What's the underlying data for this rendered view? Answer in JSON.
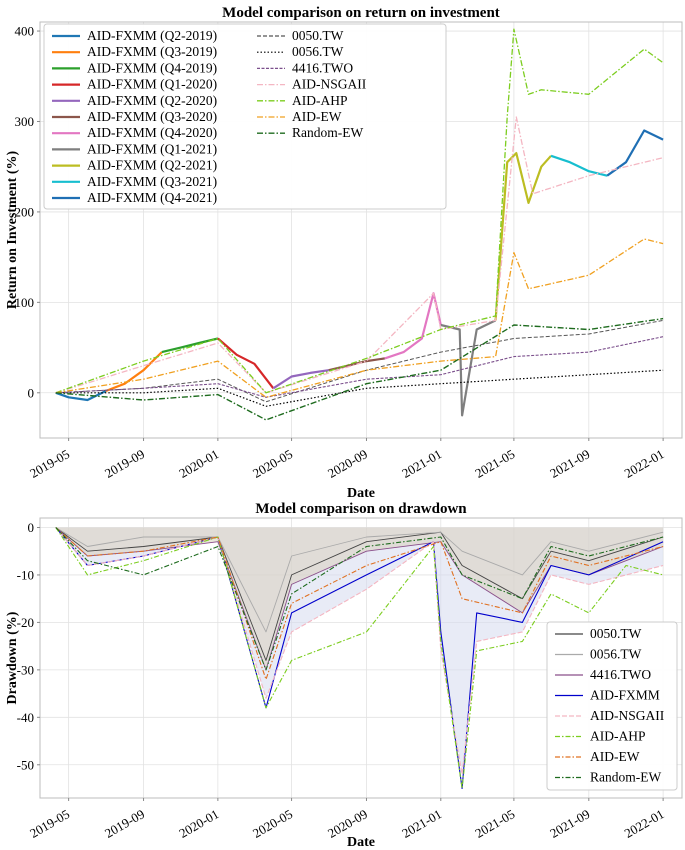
{
  "chart_data": [
    {
      "type": "line",
      "title": "Model comparison on return on investment",
      "xlabel": "Date",
      "ylabel": "Return on Investment (%)",
      "xlim": [
        "2019-03-15",
        "2022-02-01"
      ],
      "ylim": [
        -50,
        410
      ],
      "x_ticks": [
        "2019-05",
        "2019-09",
        "2020-01",
        "2020-05",
        "2020-09",
        "2021-01",
        "2021-05",
        "2021-09",
        "2022-01"
      ],
      "y_ticks": [
        0,
        100,
        200,
        300,
        400
      ],
      "grid": true,
      "legend_placement": "top-left",
      "colors": {
        "fxmm_q2_2019": "#1f77b4",
        "fxmm_q3_2019": "#ff7f0e",
        "fxmm_q4_2019": "#2ca02c",
        "fxmm_q1_2020": "#d62728",
        "fxmm_q2_2020": "#9467bd",
        "fxmm_q3_2020": "#8c564b",
        "fxmm_q4_2020": "#e377c2",
        "fxmm_q1_2021": "#7f7f7f",
        "fxmm_q2_2021": "#bcbd22",
        "fxmm_q3_2021": "#17becf",
        "fxmm_q4_2021": "#1f6fb4",
        "tw0050": "#555555",
        "tw0056": "#000000",
        "two4416": "#7b4f8c",
        "nsgaii": "#f4b6c2",
        "ahp": "#7ccd1f",
        "ew": "#f0a020",
        "random": "#1e6b1e"
      },
      "legend": [
        "AID-FXMM (Q2-2019)",
        "AID-FXMM (Q3-2019)",
        "AID-FXMM (Q4-2019)",
        "AID-FXMM (Q1-2020)",
        "AID-FXMM (Q2-2020)",
        "AID-FXMM (Q3-2020)",
        "AID-FXMM (Q4-2020)",
        "AID-FXMM (Q1-2021)",
        "AID-FXMM (Q2-2021)",
        "AID-FXMM (Q3-2021)",
        "AID-FXMM (Q4-2021)",
        "0050.TW",
        "0056.TW",
        "4416.TWO",
        "AID-NSGAII",
        "AID-AHP",
        "AID-EW",
        "Random-EW"
      ],
      "series": [
        {
          "name": "AID-FXMM (Q2-2019)",
          "x": [
            "2019-04-10",
            "2019-05-01",
            "2019-06-01",
            "2019-07-01"
          ],
          "values": [
            0,
            -5,
            -8,
            2
          ]
        },
        {
          "name": "AID-FXMM (Q3-2019)",
          "x": [
            "2019-07-01",
            "2019-08-01",
            "2019-09-01",
            "2019-10-01"
          ],
          "values": [
            2,
            10,
            25,
            45
          ]
        },
        {
          "name": "AID-FXMM (Q4-2019)",
          "x": [
            "2019-10-01",
            "2019-11-01",
            "2019-12-01",
            "2020-01-01"
          ],
          "values": [
            45,
            50,
            55,
            60
          ]
        },
        {
          "name": "AID-FXMM (Q1-2020)",
          "x": [
            "2020-01-01",
            "2020-02-01",
            "2020-03-01",
            "2020-04-01"
          ],
          "values": [
            60,
            42,
            32,
            5
          ]
        },
        {
          "name": "AID-FXMM (Q2-2020)",
          "x": [
            "2020-04-01",
            "2020-05-01",
            "2020-06-01",
            "2020-07-01"
          ],
          "values": [
            5,
            18,
            22,
            25
          ]
        },
        {
          "name": "AID-FXMM (Q3-2020)",
          "x": [
            "2020-07-01",
            "2020-08-01",
            "2020-09-01",
            "2020-10-01"
          ],
          "values": [
            25,
            30,
            35,
            38
          ]
        },
        {
          "name": "AID-FXMM (Q4-2020)",
          "x": [
            "2020-10-01",
            "2020-11-01",
            "2020-12-01",
            "2020-12-20",
            "2021-01-01"
          ],
          "values": [
            38,
            45,
            60,
            110,
            75
          ]
        },
        {
          "name": "AID-FXMM (Q1-2021)",
          "x": [
            "2021-01-01",
            "2021-02-01",
            "2021-02-05",
            "2021-03-01",
            "2021-04-01"
          ],
          "values": [
            75,
            70,
            -25,
            70,
            80
          ]
        },
        {
          "name": "AID-FXMM (Q2-2021)",
          "x": [
            "2021-04-01",
            "2021-04-20",
            "2021-05-05",
            "2021-05-25",
            "2021-06-15",
            "2021-07-01"
          ],
          "values": [
            80,
            255,
            265,
            210,
            250,
            262
          ]
        },
        {
          "name": "AID-FXMM (Q3-2021)",
          "x": [
            "2021-07-01",
            "2021-08-01",
            "2021-09-01",
            "2021-10-01"
          ],
          "values": [
            262,
            255,
            245,
            240
          ]
        },
        {
          "name": "AID-FXMM (Q4-2021)",
          "x": [
            "2021-10-01",
            "2021-11-01",
            "2021-12-01",
            "2022-01-01"
          ],
          "values": [
            240,
            255,
            290,
            280
          ]
        },
        {
          "name": "0050.TW",
          "x": [
            "2019-04-10",
            "2019-09-01",
            "2020-01-01",
            "2020-03-20",
            "2020-09-01",
            "2021-01-01",
            "2021-05-01",
            "2021-09-01",
            "2022-01-01"
          ],
          "values": [
            0,
            5,
            15,
            -10,
            25,
            45,
            60,
            65,
            80
          ]
        },
        {
          "name": "0056.TW",
          "x": [
            "2019-04-10",
            "2019-09-01",
            "2020-01-01",
            "2020-03-20",
            "2020-09-01",
            "2021-01-01",
            "2021-05-01",
            "2021-09-01",
            "2022-01-01"
          ],
          "values": [
            0,
            0,
            5,
            -15,
            5,
            10,
            15,
            20,
            25
          ]
        },
        {
          "name": "4416.TWO",
          "x": [
            "2019-04-10",
            "2019-09-01",
            "2020-01-01",
            "2020-03-20",
            "2020-09-01",
            "2021-01-01",
            "2021-05-01",
            "2021-09-01",
            "2022-01-01"
          ],
          "values": [
            0,
            5,
            10,
            -5,
            15,
            20,
            40,
            45,
            62
          ]
        },
        {
          "name": "AID-NSGAII",
          "x": [
            "2019-04-10",
            "2019-09-01",
            "2020-01-01",
            "2020-03-20",
            "2020-09-01",
            "2020-12-20",
            "2021-01-01",
            "2021-04-01",
            "2021-05-05",
            "2021-06-01",
            "2021-09-01",
            "2022-01-01"
          ],
          "values": [
            0,
            30,
            55,
            0,
            35,
            110,
            70,
            80,
            305,
            220,
            240,
            260
          ]
        },
        {
          "name": "AID-AHP",
          "x": [
            "2019-04-10",
            "2019-09-01",
            "2020-01-01",
            "2020-03-20",
            "2020-09-01",
            "2021-01-01",
            "2021-04-01",
            "2021-04-20",
            "2021-05-01",
            "2021-05-25",
            "2021-06-15",
            "2021-09-01",
            "2021-12-01",
            "2022-01-01"
          ],
          "values": [
            0,
            35,
            60,
            0,
            38,
            70,
            85,
            305,
            402,
            330,
            335,
            330,
            380,
            365
          ]
        },
        {
          "name": "AID-EW",
          "x": [
            "2019-04-10",
            "2019-09-01",
            "2020-01-01",
            "2020-03-20",
            "2020-09-01",
            "2021-01-01",
            "2021-04-01",
            "2021-05-01",
            "2021-05-25",
            "2021-09-01",
            "2021-12-01",
            "2022-01-01"
          ],
          "values": [
            0,
            15,
            35,
            -5,
            25,
            35,
            40,
            155,
            115,
            130,
            170,
            165
          ]
        },
        {
          "name": "Random-EW",
          "x": [
            "2019-04-10",
            "2019-09-01",
            "2020-01-01",
            "2020-03-20",
            "2020-09-01",
            "2021-01-01",
            "2021-05-01",
            "2021-09-01",
            "2022-01-01"
          ],
          "values": [
            0,
            -8,
            -2,
            -30,
            10,
            25,
            75,
            70,
            82
          ]
        }
      ]
    },
    {
      "type": "line",
      "title": "Model comparison on drawdown",
      "xlabel": "Date",
      "ylabel": "Drawdown (%)",
      "xlim": [
        "2019-03-15",
        "2022-02-01"
      ],
      "ylim": [
        -57,
        2
      ],
      "x_ticks": [
        "2019-05",
        "2019-09",
        "2020-01",
        "2020-05",
        "2020-09",
        "2021-01",
        "2021-05",
        "2021-09",
        "2022-01"
      ],
      "y_ticks": [
        0,
        -10,
        -20,
        -30,
        -40,
        -50
      ],
      "grid": true,
      "legend_placement": "bottom-right",
      "colors": {
        "tw0050": "#444444",
        "tw0056": "#aaaaaa",
        "two4416": "#8a4f8a",
        "fxmm": "#0000cc",
        "nsgaii": "#f4b6c2",
        "ahp": "#7ccd1f",
        "ew": "#e07020",
        "random": "#1e6b1e",
        "fill_tan": "#d8cfbd",
        "fill_blue": "#d5daef"
      },
      "legend": [
        "0050.TW",
        "0056.TW",
        "4416.TWO",
        "AID-FXMM",
        "AID-NSGAII",
        "AID-AHP",
        "AID-EW",
        "Random-EW"
      ],
      "series": [
        {
          "name": "0050.TW",
          "x": [
            "2019-04-10",
            "2019-06-01",
            "2019-09-01",
            "2020-01-01",
            "2020-03-20",
            "2020-05-01",
            "2020-09-01",
            "2021-01-01",
            "2021-02-05",
            "2021-05-15",
            "2021-07-01",
            "2021-09-01",
            "2022-01-01"
          ],
          "values": [
            0,
            -5,
            -4,
            -2,
            -28,
            -10,
            -3,
            -1,
            -8,
            -15,
            -5,
            -7,
            -2
          ]
        },
        {
          "name": "0056.TW",
          "x": [
            "2019-04-10",
            "2019-06-01",
            "2019-09-01",
            "2020-01-01",
            "2020-03-20",
            "2020-05-01",
            "2020-09-01",
            "2021-01-01",
            "2021-02-05",
            "2021-05-15",
            "2021-07-01",
            "2021-09-01",
            "2022-01-01"
          ],
          "values": [
            0,
            -4,
            -2,
            -2,
            -22,
            -6,
            -2,
            -1,
            -5,
            -10,
            -3,
            -5,
            -1
          ]
        },
        {
          "name": "4416.TWO",
          "x": [
            "2019-04-10",
            "2019-06-01",
            "2019-09-01",
            "2020-01-01",
            "2020-03-20",
            "2020-05-01",
            "2020-09-01",
            "2021-01-01",
            "2021-02-05",
            "2021-05-15",
            "2021-07-01",
            "2021-09-01",
            "2022-01-01"
          ],
          "values": [
            0,
            -6,
            -5,
            -3,
            -30,
            -12,
            -5,
            -3,
            -10,
            -18,
            -8,
            -10,
            -4
          ]
        },
        {
          "name": "AID-FXMM",
          "x": [
            "2019-04-10",
            "2019-06-01",
            "2019-09-01",
            "2020-01-01",
            "2020-03-20",
            "2020-05-01",
            "2020-09-01",
            "2020-12-20",
            "2021-01-01",
            "2021-02-05",
            "2021-03-01",
            "2021-05-15",
            "2021-07-01",
            "2021-09-01",
            "2022-01-01"
          ],
          "values": [
            0,
            -8,
            -6,
            -2,
            -38,
            -18,
            -10,
            -3,
            -22,
            -55,
            -18,
            -20,
            -8,
            -10,
            -3
          ]
        },
        {
          "name": "AID-NSGAII",
          "x": [
            "2019-04-10",
            "2019-06-01",
            "2019-09-01",
            "2020-01-01",
            "2020-03-20",
            "2020-05-01",
            "2020-09-01",
            "2020-12-20",
            "2021-01-01",
            "2021-02-05",
            "2021-03-01",
            "2021-05-15",
            "2021-07-01",
            "2021-09-01",
            "2022-01-01"
          ],
          "values": [
            0,
            -8,
            -6,
            -2,
            -36,
            -22,
            -13,
            -3,
            -26,
            -52,
            -24,
            -22,
            -10,
            -12,
            -8
          ]
        },
        {
          "name": "AID-AHP",
          "x": [
            "2019-04-10",
            "2019-06-01",
            "2019-09-01",
            "2020-01-01",
            "2020-03-20",
            "2020-05-01",
            "2020-09-01",
            "2020-12-20",
            "2021-01-01",
            "2021-02-05",
            "2021-03-01",
            "2021-05-15",
            "2021-07-01",
            "2021-09-01",
            "2021-11-01",
            "2022-01-01"
          ],
          "values": [
            0,
            -10,
            -7,
            -2,
            -38,
            -28,
            -22,
            -4,
            -24,
            -55,
            -26,
            -24,
            -14,
            -18,
            -8,
            -10
          ]
        },
        {
          "name": "AID-EW",
          "x": [
            "2019-04-10",
            "2019-06-01",
            "2019-09-01",
            "2020-01-01",
            "2020-03-20",
            "2020-05-01",
            "2020-09-01",
            "2021-01-01",
            "2021-02-05",
            "2021-05-15",
            "2021-07-01",
            "2021-09-01",
            "2022-01-01"
          ],
          "values": [
            0,
            -6,
            -5,
            -2,
            -32,
            -16,
            -8,
            -3,
            -15,
            -18,
            -6,
            -8,
            -4
          ]
        },
        {
          "name": "Random-EW",
          "x": [
            "2019-04-10",
            "2019-06-01",
            "2019-09-01",
            "2020-01-01",
            "2020-03-20",
            "2020-05-01",
            "2020-09-01",
            "2021-01-01",
            "2021-02-05",
            "2021-05-15",
            "2021-07-01",
            "2021-09-01",
            "2022-01-01"
          ],
          "values": [
            0,
            -7,
            -10,
            -4,
            -30,
            -14,
            -4,
            -2,
            -10,
            -15,
            -4,
            -6,
            -2
          ]
        }
      ]
    }
  ]
}
